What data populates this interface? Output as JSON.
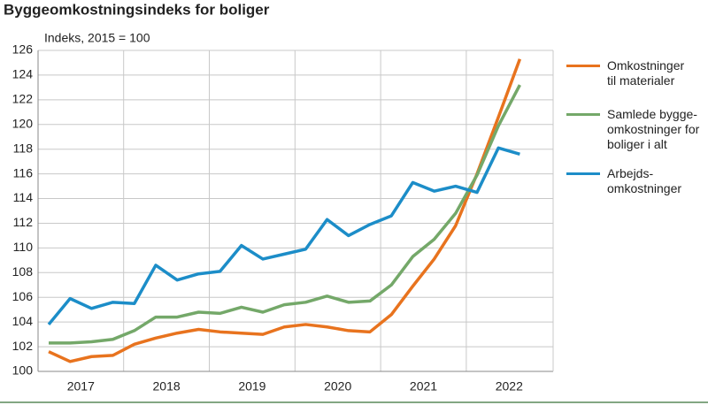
{
  "chart_data": {
    "type": "line",
    "title": "Byggeomkostningsindeks for boliger",
    "subtitle": "Indeks, 2015 = 100",
    "x_labels": [
      "2017",
      "2018",
      "2019",
      "2020",
      "2021",
      "2022"
    ],
    "series": [
      {
        "name": "Omkostninger\ntil materialer",
        "color": "#e8731e",
        "values": [
          101.6,
          100.8,
          101.2,
          101.3,
          102.2,
          102.7,
          103.1,
          103.4,
          103.2,
          103.1,
          103.0,
          103.6,
          103.8,
          103.6,
          103.3,
          103.2,
          104.6,
          106.9,
          109.1,
          111.8,
          116.0,
          120.6,
          125.3
        ]
      },
      {
        "name": "Samlede bygge-\nomkostninger for\nboliger i alt",
        "color": "#74a869",
        "values": [
          102.3,
          102.3,
          102.4,
          102.6,
          103.3,
          104.4,
          104.4,
          104.8,
          104.7,
          105.2,
          104.8,
          105.4,
          105.6,
          106.1,
          105.6,
          105.7,
          107.0,
          109.3,
          110.7,
          112.8,
          115.9,
          119.9,
          123.2
        ]
      },
      {
        "name": "Arbejds-\nomkostninger",
        "color": "#1c8dc8",
        "values": [
          103.8,
          105.9,
          105.1,
          105.6,
          105.5,
          108.6,
          107.4,
          107.9,
          108.1,
          110.2,
          109.1,
          109.5,
          109.9,
          112.3,
          111.0,
          111.9,
          112.6,
          115.3,
          114.6,
          115.0,
          114.5,
          118.1,
          117.6
        ]
      }
    ],
    "ylim": [
      100,
      126
    ],
    "yticks": [
      100,
      102,
      104,
      106,
      108,
      110,
      112,
      114,
      116,
      118,
      120,
      122,
      124,
      126
    ],
    "grid": true
  }
}
